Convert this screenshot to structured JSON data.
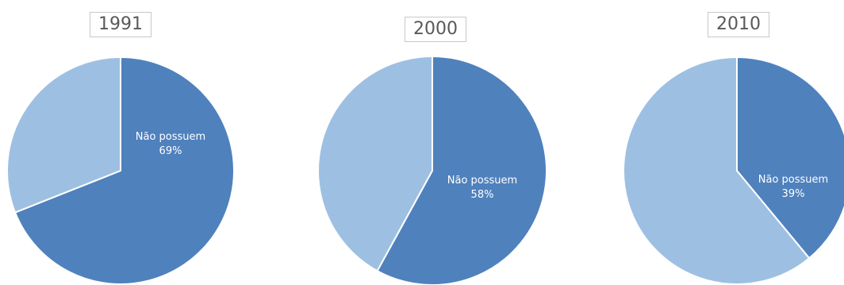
{
  "colors": {
    "nao_possuem": "#4f81bd",
    "other": "#9dc0e2",
    "border": "#ffffff",
    "label_text": "#ffffff"
  },
  "chart_data": [
    {
      "type": "pie",
      "title": "1991",
      "slices": [
        {
          "label": "Não possuem",
          "value": 69,
          "value_label": "69%",
          "color": "#4f81bd"
        },
        {
          "label": "",
          "value": 31,
          "color": "#9dc0e2"
        }
      ]
    },
    {
      "type": "pie",
      "title": "2000",
      "slices": [
        {
          "label": "Não possuem",
          "value": 58,
          "value_label": "58%",
          "color": "#4f81bd"
        },
        {
          "label": "",
          "value": 42,
          "color": "#9dc0e2"
        }
      ]
    },
    {
      "type": "pie",
      "title": "2010",
      "slices": [
        {
          "label": "Não possuem",
          "value": 39,
          "value_label": "39%",
          "color": "#4f81bd"
        },
        {
          "label": "",
          "value": 61,
          "color": "#9dc0e2"
        }
      ]
    }
  ]
}
